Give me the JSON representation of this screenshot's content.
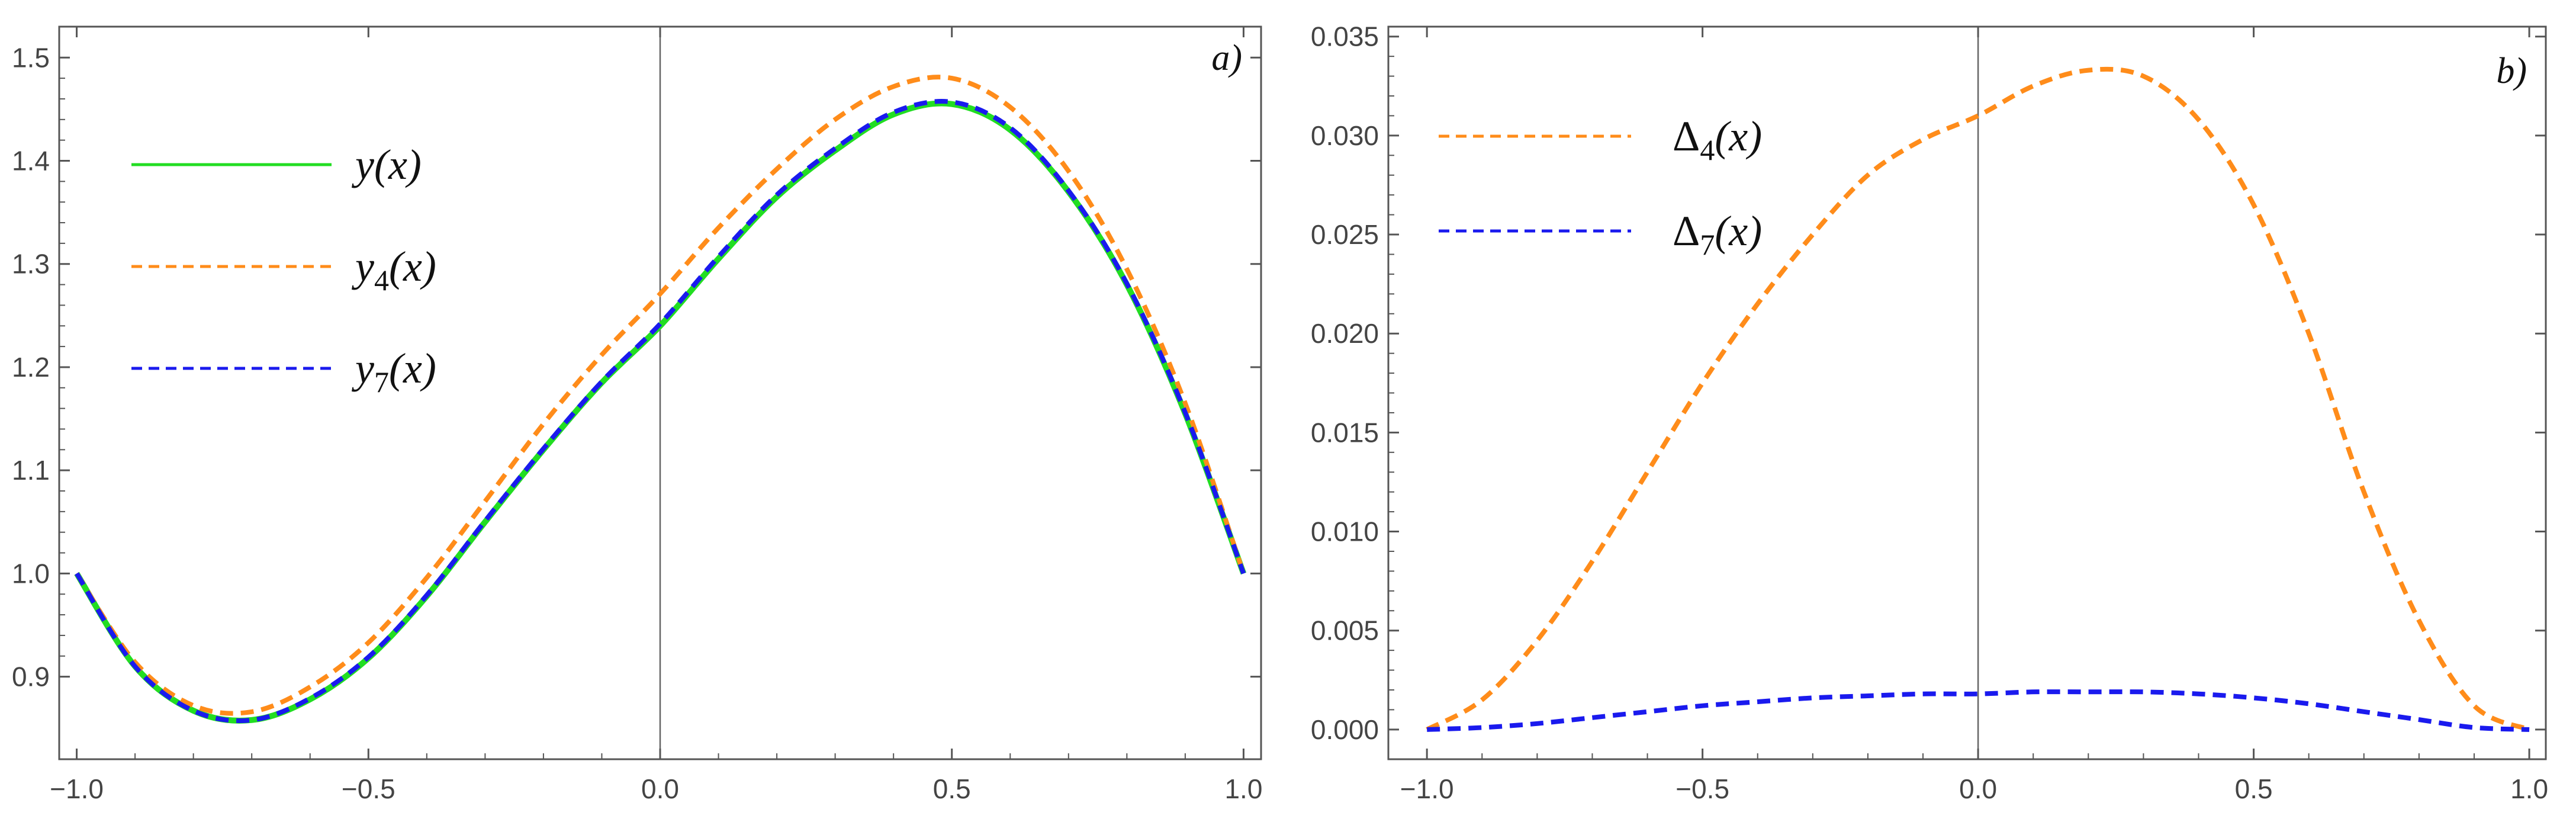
{
  "chart_data": [
    {
      "type": "line",
      "panel_label": "a)",
      "xlim": [
        -1.03,
        1.03
      ],
      "ylim": [
        0.82,
        1.53
      ],
      "xticks": [
        -1.0,
        -0.5,
        0.0,
        0.5,
        1.0
      ],
      "xtick_labels": [
        "−1.0",
        "−0.5",
        "0.0",
        "0.5",
        "1.0"
      ],
      "yticks": [
        0.9,
        1.0,
        1.1,
        1.2,
        1.3,
        1.4,
        1.5
      ],
      "ytick_labels": [
        "0.9",
        "1.0",
        "1.1",
        "1.2",
        "1.3",
        "1.4",
        "1.5"
      ],
      "legend_position": "top-left",
      "x": [
        -1.0,
        -0.9,
        -0.8,
        -0.7,
        -0.6,
        -0.5,
        -0.4,
        -0.3,
        -0.2,
        -0.1,
        0.0,
        0.1,
        0.2,
        0.3,
        0.4,
        0.5,
        0.6,
        0.7,
        0.8,
        0.9,
        1.0
      ],
      "series": [
        {
          "name": "y(x)",
          "legend": {
            "base": "y",
            "sub": "",
            "arg": "(x)"
          },
          "color": "#22dd22",
          "dash": "solid",
          "values": [
            1.0,
            0.91,
            0.867,
            0.858,
            0.878,
            0.918,
            0.978,
            1.05,
            1.12,
            1.185,
            1.24,
            1.305,
            1.365,
            1.41,
            1.445,
            1.455,
            1.43,
            1.37,
            1.28,
            1.155,
            1.0
          ]
        },
        {
          "name": "y4(x)",
          "legend": {
            "base": "y",
            "sub": "4",
            "arg": "(x)"
          },
          "color": "#ff8c1a",
          "dash": "dashed",
          "values": [
            1.0,
            0.914,
            0.872,
            0.866,
            0.89,
            0.933,
            0.996,
            1.07,
            1.145,
            1.212,
            1.271,
            1.335,
            1.392,
            1.44,
            1.472,
            1.48,
            1.452,
            1.39,
            1.295,
            1.165,
            1.0
          ]
        },
        {
          "name": "y7(x)",
          "legend": {
            "base": "y",
            "sub": "7",
            "arg": "(x)"
          },
          "color": "#1a1aee",
          "dash": "dashed",
          "values": [
            1.0,
            0.91,
            0.867,
            0.858,
            0.879,
            0.919,
            0.979,
            1.051,
            1.121,
            1.186,
            1.242,
            1.307,
            1.367,
            1.412,
            1.447,
            1.457,
            1.432,
            1.371,
            1.281,
            1.156,
            1.0
          ]
        }
      ]
    },
    {
      "type": "line",
      "panel_label": "b)",
      "xlim": [
        -1.07,
        1.03
      ],
      "ylim": [
        -0.0015,
        0.0355
      ],
      "xticks": [
        -1.0,
        -0.5,
        0.0,
        0.5,
        1.0
      ],
      "xtick_labels": [
        "−1.0",
        "−0.5",
        "0.0",
        "0.5",
        "1.0"
      ],
      "yticks": [
        0.0,
        0.005,
        0.01,
        0.015,
        0.02,
        0.025,
        0.03,
        0.035
      ],
      "ytick_labels": [
        "0.000",
        "0.005",
        "0.010",
        "0.015",
        "0.020",
        "0.025",
        "0.030",
        "0.035"
      ],
      "legend_position": "top-left",
      "x": [
        -1.0,
        -0.9,
        -0.8,
        -0.7,
        -0.6,
        -0.5,
        -0.4,
        -0.3,
        -0.2,
        -0.1,
        0.0,
        0.1,
        0.2,
        0.3,
        0.4,
        0.5,
        0.6,
        0.7,
        0.8,
        0.9,
        1.0
      ],
      "series": [
        {
          "name": "Δ4(x)",
          "legend": {
            "base": "Δ",
            "sub": "4",
            "arg": "(x)"
          },
          "color": "#ff8c1a",
          "dash": "dashed",
          "values": [
            0.0,
            0.0015,
            0.0045,
            0.0085,
            0.013,
            0.0175,
            0.0215,
            0.025,
            0.028,
            0.0298,
            0.031,
            0.0325,
            0.0333,
            0.033,
            0.0308,
            0.0265,
            0.02,
            0.012,
            0.0055,
            0.0012,
            0.0
          ]
        },
        {
          "name": "Δ7(x)",
          "legend": {
            "base": "Δ",
            "sub": "7",
            "arg": "(x)"
          },
          "color": "#1a1aee",
          "dash": "dashed",
          "values": [
            0.0,
            0.0001,
            0.0003,
            0.0006,
            0.0009,
            0.0012,
            0.0014,
            0.0016,
            0.0017,
            0.0018,
            0.0018,
            0.0019,
            0.0019,
            0.0019,
            0.0018,
            0.0016,
            0.0013,
            0.0009,
            0.0005,
            0.0001,
            0.0
          ]
        }
      ]
    }
  ]
}
